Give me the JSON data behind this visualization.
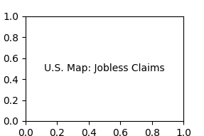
{
  "title": "U.S. Map: Jobless Claims",
  "background_color": "#f0f0f0",
  "state_colors": {
    "AL": "#a8c4de",
    "AK": "#5b8db8",
    "AZ": "#7aafd4",
    "AR": "#7aafd4",
    "CA": "#7aafd4",
    "CO": "#5b8db8",
    "CT": "#c0392b",
    "DE": "#a8c4de",
    "FL": "#c0392b",
    "GA": "#a8c4de",
    "HI": "#a8c4de",
    "ID": "#7aafd4",
    "IL": "#2c5f8a",
    "IN": "#5b8db8",
    "IA": "#5b8db8",
    "KS": "#e8d5b0",
    "KY": "#a8c4de",
    "LA": "#e8c98a",
    "ME": "#a8c4de",
    "MD": "#7aafd4",
    "MA": "#5b8db8",
    "MI": "#2c5f8a",
    "MN": "#7aafd4",
    "MS": "#a8c4de",
    "MO": "#1e4870",
    "MT": "#7aafd4",
    "NE": "#5b8db8",
    "NV": "#7aafd4",
    "NH": "#a8c4de",
    "NJ": "#5b8db8",
    "NM": "#7aafd4",
    "NY": "#1e4870",
    "NC": "#a8c4de",
    "ND": "#7aafd4",
    "OH": "#5b8db8",
    "OK": "#a8c4de",
    "OR": "#5b8db8",
    "PA": "#5b8db8",
    "RI": "#a8c4de",
    "SC": "#a8c4de",
    "SD": "#7aafd4",
    "TN": "#a8c4de",
    "TX": "#e8dfc8",
    "UT": "#7aafd4",
    "VT": "#a8c4de",
    "VA": "#7aafd4",
    "WA": "#5b8db8",
    "WV": "#b94030",
    "WI": "#5b8db8",
    "WY": "#5b8db8"
  },
  "figsize": [
    2.87,
    1.91
  ],
  "dpi": 100
}
